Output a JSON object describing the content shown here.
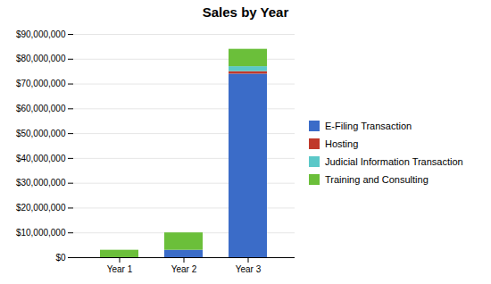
{
  "chart_data": {
    "type": "bar",
    "title": "Sales by Year",
    "categories": [
      "Year 1",
      "Year 2",
      "Year 3"
    ],
    "stacked": true,
    "series": [
      {
        "name": "E-Filing Transaction",
        "color": "#3B6CC8",
        "values": [
          0,
          3000000,
          74000000
        ]
      },
      {
        "name": "Hosting",
        "color": "#C0392B",
        "values": [
          0,
          0,
          1000000
        ]
      },
      {
        "name": "Judicial Information Transaction",
        "color": "#5BC8C8",
        "values": [
          0,
          0,
          2000000
        ]
      },
      {
        "name": "Training and Consulting",
        "color": "#6BBF3A",
        "values": [
          3000000,
          7000000,
          7000000
        ]
      }
    ],
    "ylim": [
      0,
      90000000
    ],
    "yticks": [
      {
        "value": 0,
        "label": "$0"
      },
      {
        "value": 10000000,
        "label": "$10,000,000"
      },
      {
        "value": 20000000,
        "label": "$20,000,000"
      },
      {
        "value": 30000000,
        "label": "$30,000,000"
      },
      {
        "value": 40000000,
        "label": "$40,000,000"
      },
      {
        "value": 50000000,
        "label": "$50,000,000"
      },
      {
        "value": 60000000,
        "label": "$60,000,000"
      },
      {
        "value": 70000000,
        "label": "$70,000,000"
      },
      {
        "value": 80000000,
        "label": "$80,000,000"
      },
      {
        "value": 90000000,
        "label": "$90,000,000"
      }
    ],
    "grid": true,
    "legend": "right"
  }
}
